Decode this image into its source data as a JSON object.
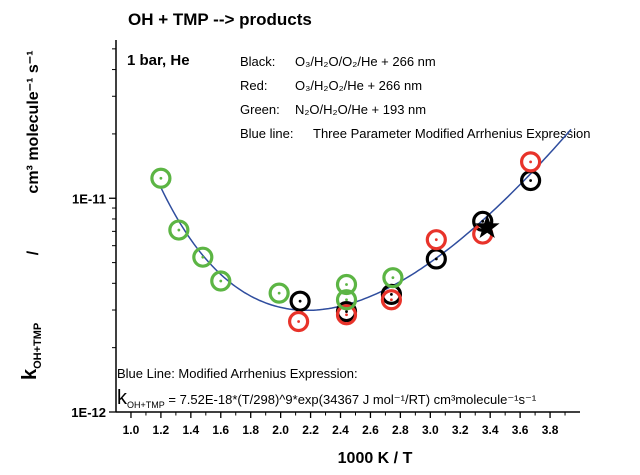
{
  "chart_data": {
    "type": "scatter",
    "title": "OH  +  TMP  --> products",
    "condition_label": "1 bar, He",
    "xlabel": "1000 K   /   T",
    "ylabel_k": "k",
    "ylabel_k_sub": "OH+TMP",
    "ylabel_slash": "/",
    "ylabel_units": "cm³ molecule⁻¹ s⁻¹",
    "xlim": [
      0.9,
      4.0
    ],
    "x_ticks": [
      "1.0",
      "1.2",
      "1.4",
      "1.6",
      "1.8",
      "2.0",
      "2.2",
      "2.4",
      "2.6",
      "2.8",
      "3.0",
      "3.2",
      "3.4",
      "3.6",
      "3.8"
    ],
    "y_scale": "log",
    "ylim": [
      1e-12,
      5.5e-11
    ],
    "y_ticks": [
      {
        "value": 1e-11,
        "label": "1E-11"
      },
      {
        "value": 1e-12,
        "label": "1E-12"
      }
    ],
    "legend_lines": [
      {
        "prefix": "Black:",
        "text": "O₃/H₂O/O₂/He + 266 nm"
      },
      {
        "prefix": "Red:",
        "text": "O₃/H₂O₂/He + 266 nm"
      },
      {
        "prefix": "Green:",
        "text": "N₂O/H₂O/He + 193 nm"
      },
      {
        "prefix": "Blue line:",
        "text": "Three Parameter Modified Arrhenius Expression"
      }
    ],
    "fit_title": "Blue Line:  Modified Arrhenius Expression:",
    "fit_k": "k",
    "fit_k_sub": "OH+TMP",
    "fit_formula": " = 7.52E-18*(T/298)^9*exp(34367 J mol⁻¹/RT) cm³molecule⁻¹s⁻¹",
    "fit_params": {
      "A": 7.52e-18,
      "n": 9,
      "Ea_J_per_mol": 34367,
      "T_ref": 298
    },
    "series": [
      {
        "color": "#000000",
        "marker": "circle",
        "x": [
          2.13,
          2.44,
          2.74,
          3.04,
          3.35,
          3.67
        ],
        "y": [
          3.3e-12,
          2.95e-12,
          3.55e-12,
          5.2e-12,
          7.8e-12,
          1.21e-11
        ]
      },
      {
        "color": "#e8332a",
        "marker": "circle",
        "x": [
          2.12,
          2.44,
          2.74,
          3.04,
          3.35,
          3.67
        ],
        "y": [
          2.65e-12,
          2.85e-12,
          3.35e-12,
          6.4e-12,
          6.8e-12,
          1.48e-11
        ]
      },
      {
        "color": "#5cb544",
        "marker": "circle",
        "x": [
          1.2,
          1.32,
          1.48,
          1.6,
          1.99,
          2.44,
          2.44,
          2.75
        ],
        "y": [
          1.24e-11,
          7.1e-12,
          5.3e-12,
          4.1e-12,
          3.6e-12,
          3.95e-12,
          3.35e-12,
          4.25e-12
        ]
      },
      {
        "color": "#000000",
        "marker": "star",
        "x": [
          3.38
        ],
        "y": [
          7.3e-12
        ]
      }
    ],
    "fit_color": "#2f4d9e",
    "grid": false
  }
}
